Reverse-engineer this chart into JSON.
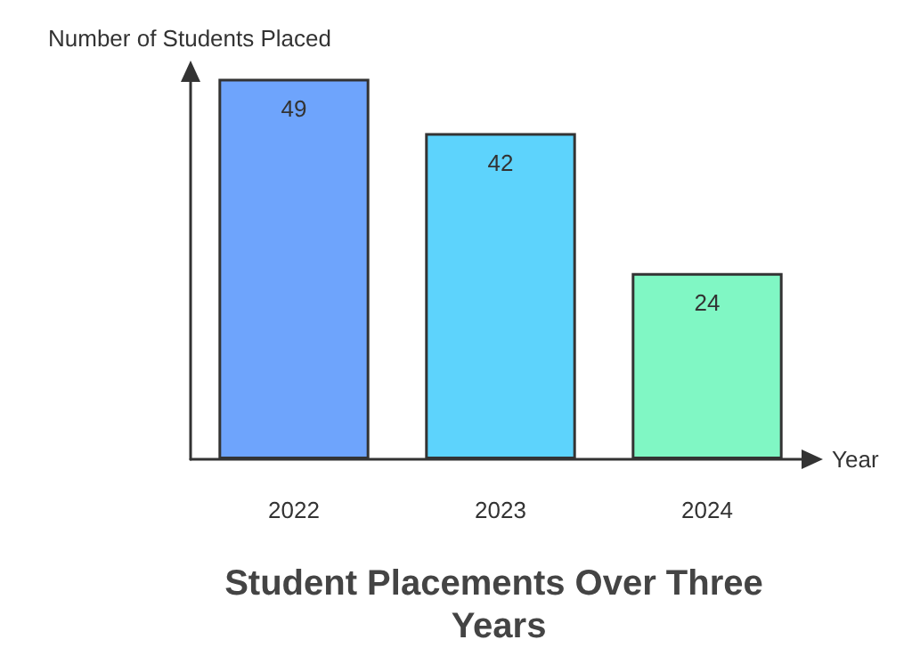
{
  "chart_data": {
    "type": "bar",
    "title": "Student Placements Over Three Years",
    "xlabel": "Year",
    "ylabel": "Number of Students Placed",
    "categories": [
      "2022",
      "2023",
      "2024"
    ],
    "values": [
      49,
      42,
      24
    ],
    "colors": [
      "#6ea4fc",
      "#5dd3fc",
      "#80f7c4"
    ],
    "data_labels": true
  }
}
